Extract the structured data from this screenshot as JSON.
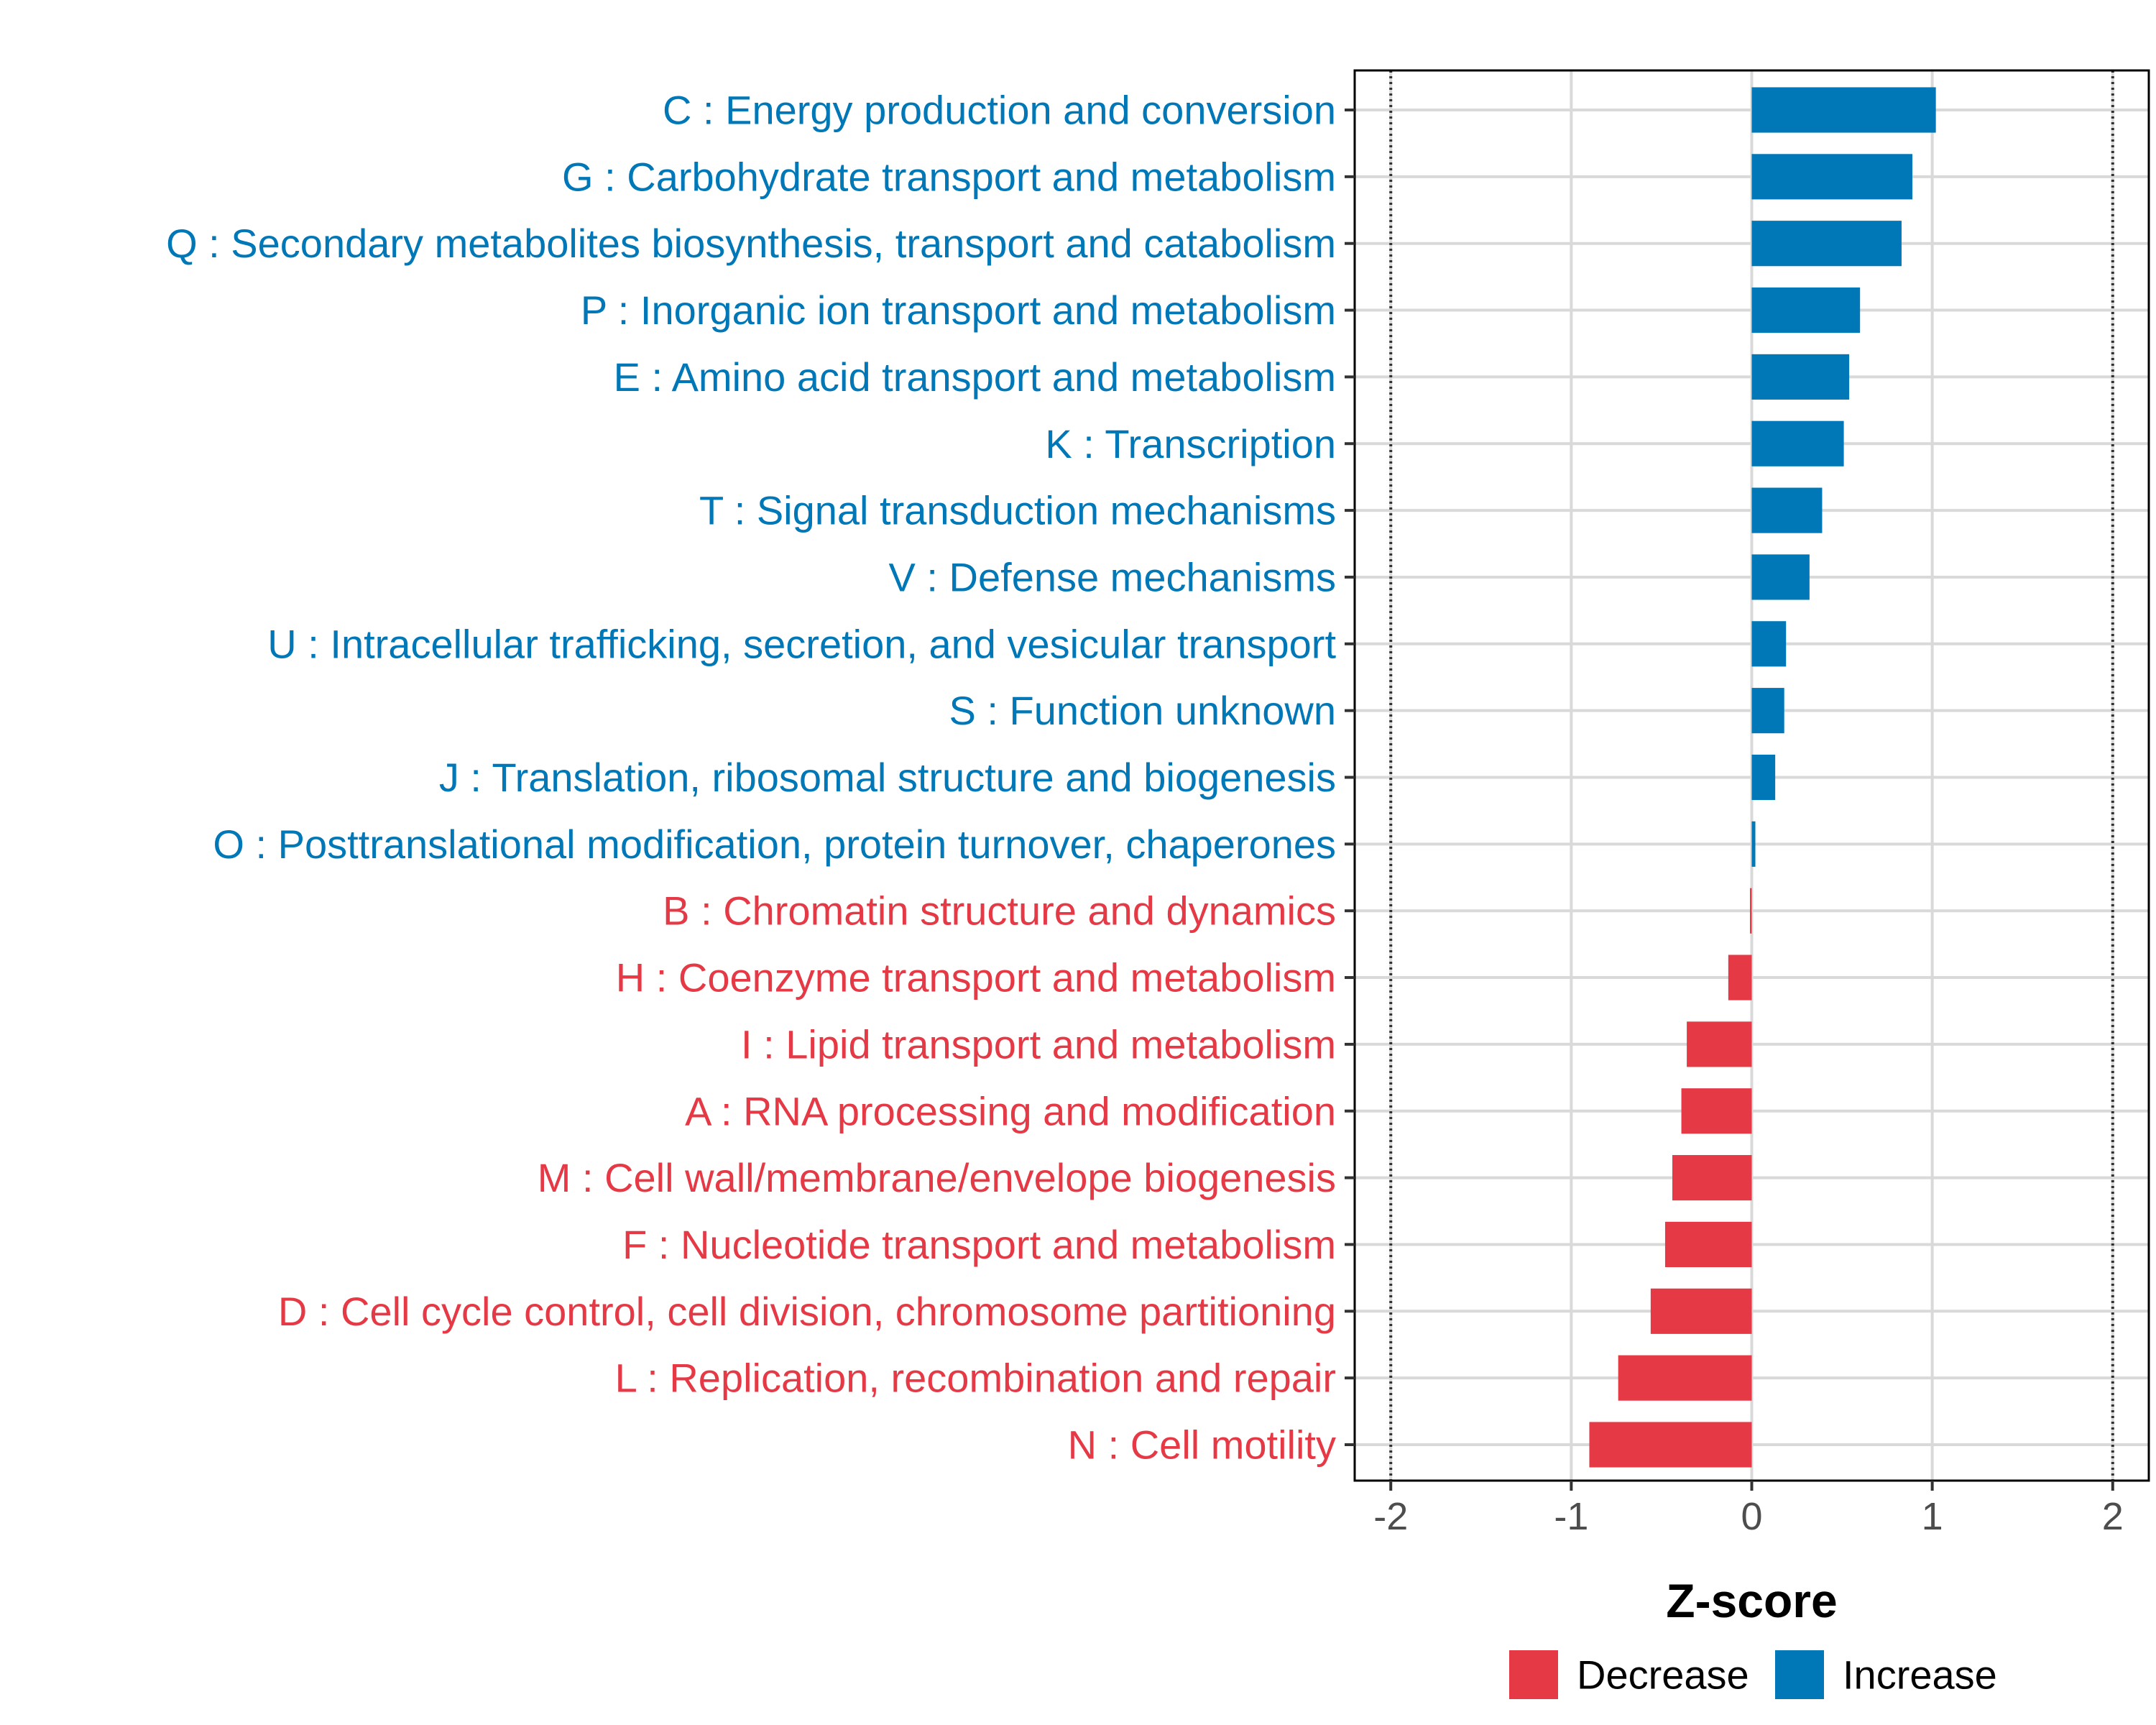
{
  "chart_data": {
    "type": "bar",
    "orientation": "horizontal",
    "title": "",
    "xlabel": "Z-score",
    "ylabel": "",
    "xlim": [
      -2.2,
      2.2
    ],
    "xticks": [
      -2,
      -1,
      0,
      1,
      2
    ],
    "xtick_labels": [
      "-2",
      "-1",
      "0",
      "1",
      "2"
    ],
    "reference_lines": [
      -2,
      2
    ],
    "grid": true,
    "colors": {
      "Increase": "#0077b6",
      "Decrease": "#e63946",
      "axis": "#000000",
      "grid": "#d9d9d9",
      "tick_text": "#4d4d4d"
    },
    "legend": {
      "placement": "bottom",
      "entries": [
        "Decrease",
        "Increase"
      ]
    },
    "categories": [
      "C : Energy production and conversion",
      "G : Carbohydrate transport and metabolism",
      "Q : Secondary metabolites biosynthesis, transport and catabolism",
      "P : Inorganic ion transport and metabolism",
      "E : Amino acid transport and metabolism",
      "K : Transcription",
      "T : Signal transduction mechanisms",
      "V : Defense mechanisms",
      "U : Intracellular trafficking, secretion, and vesicular transport",
      "S : Function unknown",
      "J : Translation, ribosomal structure and biogenesis",
      "O : Posttranslational modification, protein turnover, chaperones",
      "B : Chromatin structure and dynamics",
      "H : Coenzyme transport and metabolism",
      "I : Lipid transport and metabolism",
      "A : RNA processing and modification",
      "M : Cell wall/membrane/envelope biogenesis",
      "F : Nucleotide transport and metabolism",
      "D : Cell cycle control, cell division, chromosome partitioning",
      "L : Replication, recombination and repair",
      "N : Cell motility"
    ],
    "values": [
      1.02,
      0.89,
      0.83,
      0.6,
      0.54,
      0.51,
      0.39,
      0.32,
      0.19,
      0.18,
      0.13,
      0.02,
      -0.01,
      -0.13,
      -0.36,
      -0.39,
      -0.44,
      -0.48,
      -0.56,
      -0.74,
      -0.9
    ],
    "groups": [
      "Increase",
      "Increase",
      "Increase",
      "Increase",
      "Increase",
      "Increase",
      "Increase",
      "Increase",
      "Increase",
      "Increase",
      "Increase",
      "Increase",
      "Decrease",
      "Decrease",
      "Decrease",
      "Decrease",
      "Decrease",
      "Decrease",
      "Decrease",
      "Decrease",
      "Decrease"
    ]
  }
}
